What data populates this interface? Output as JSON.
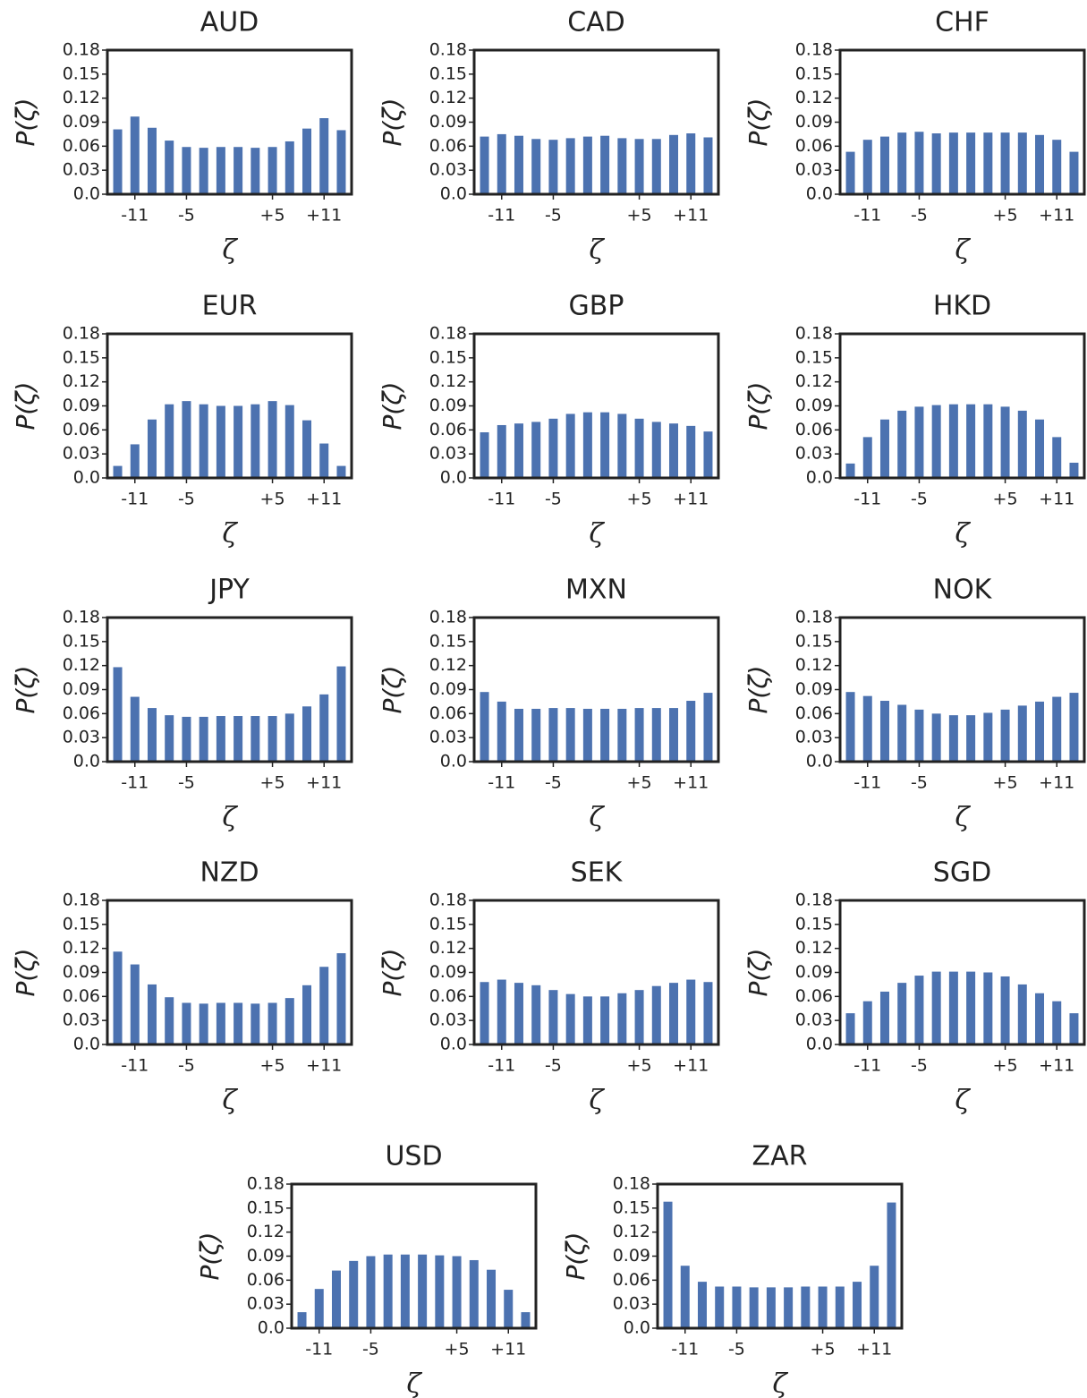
{
  "chart_data": [
    {
      "type": "bar",
      "title": "AUD",
      "xlabel": "ζ",
      "ylabel": "P(ζ)",
      "color": "#4c72b0",
      "x": [
        -13,
        -11,
        -9,
        -7,
        -5,
        -3,
        -1,
        1,
        3,
        5,
        7,
        9,
        11,
        13
      ],
      "values": [
        0.081,
        0.097,
        0.083,
        0.067,
        0.059,
        0.058,
        0.059,
        0.059,
        0.058,
        0.059,
        0.066,
        0.082,
        0.095,
        0.08
      ],
      "xlim": [
        -14.2,
        14.2
      ],
      "xticks": [
        -11,
        -5,
        {
          "value": 5,
          "label": "+5"
        },
        {
          "value": 11,
          "label": "+11"
        }
      ],
      "ylim": [
        0,
        0.18
      ],
      "yticks": [
        {
          "value": 0,
          "label": "0.0"
        },
        0.03,
        0.06,
        0.09,
        0.12,
        0.15,
        0.18
      ]
    },
    {
      "type": "bar",
      "title": "CAD",
      "xlabel": "ζ",
      "ylabel": "P(ζ)",
      "color": "#4c72b0",
      "x": [
        -13,
        -11,
        -9,
        -7,
        -5,
        -3,
        -1,
        1,
        3,
        5,
        7,
        9,
        11,
        13
      ],
      "values": [
        0.072,
        0.075,
        0.073,
        0.069,
        0.068,
        0.07,
        0.072,
        0.073,
        0.07,
        0.069,
        0.069,
        0.074,
        0.076,
        0.071
      ],
      "xlim": [
        -14.2,
        14.2
      ],
      "xticks": [
        -11,
        -5,
        {
          "value": 5,
          "label": "+5"
        },
        {
          "value": 11,
          "label": "+11"
        }
      ],
      "ylim": [
        0,
        0.18
      ],
      "yticks": [
        {
          "value": 0,
          "label": "0.0"
        },
        0.03,
        0.06,
        0.09,
        0.12,
        0.15,
        0.18
      ]
    },
    {
      "type": "bar",
      "title": "CHF",
      "xlabel": "ζ",
      "ylabel": "P(ζ)",
      "color": "#4c72b0",
      "x": [
        -13,
        -11,
        -9,
        -7,
        -5,
        -3,
        -1,
        1,
        3,
        5,
        7,
        9,
        11,
        13
      ],
      "values": [
        0.053,
        0.068,
        0.072,
        0.077,
        0.078,
        0.076,
        0.077,
        0.077,
        0.077,
        0.077,
        0.077,
        0.074,
        0.068,
        0.053
      ],
      "xlim": [
        -14.2,
        14.2
      ],
      "xticks": [
        -11,
        -5,
        {
          "value": 5,
          "label": "+5"
        },
        {
          "value": 11,
          "label": "+11"
        }
      ],
      "ylim": [
        0,
        0.18
      ],
      "yticks": [
        {
          "value": 0,
          "label": "0.0"
        },
        0.03,
        0.06,
        0.09,
        0.12,
        0.15,
        0.18
      ]
    },
    {
      "type": "bar",
      "title": "EUR",
      "xlabel": "ζ",
      "ylabel": "P(ζ)",
      "color": "#4c72b0",
      "x": [
        -13,
        -11,
        -9,
        -7,
        -5,
        -3,
        -1,
        1,
        3,
        5,
        7,
        9,
        11,
        13
      ],
      "values": [
        0.015,
        0.042,
        0.073,
        0.092,
        0.096,
        0.092,
        0.09,
        0.09,
        0.092,
        0.096,
        0.091,
        0.072,
        0.043,
        0.015
      ],
      "xlim": [
        -14.2,
        14.2
      ],
      "xticks": [
        -11,
        -5,
        {
          "value": 5,
          "label": "+5"
        },
        {
          "value": 11,
          "label": "+11"
        }
      ],
      "ylim": [
        0,
        0.18
      ],
      "yticks": [
        {
          "value": 0,
          "label": "0.0"
        },
        0.03,
        0.06,
        0.09,
        0.12,
        0.15,
        0.18
      ]
    },
    {
      "type": "bar",
      "title": "GBP",
      "xlabel": "ζ",
      "ylabel": "P(ζ)",
      "color": "#4c72b0",
      "x": [
        -13,
        -11,
        -9,
        -7,
        -5,
        -3,
        -1,
        1,
        3,
        5,
        7,
        9,
        11,
        13
      ],
      "values": [
        0.057,
        0.066,
        0.068,
        0.07,
        0.074,
        0.08,
        0.082,
        0.082,
        0.08,
        0.074,
        0.07,
        0.068,
        0.065,
        0.058
      ],
      "xlim": [
        -14.2,
        14.2
      ],
      "xticks": [
        -11,
        -5,
        {
          "value": 5,
          "label": "+5"
        },
        {
          "value": 11,
          "label": "+11"
        }
      ],
      "ylim": [
        0,
        0.18
      ],
      "yticks": [
        {
          "value": 0,
          "label": "0.0"
        },
        0.03,
        0.06,
        0.09,
        0.12,
        0.15,
        0.18
      ]
    },
    {
      "type": "bar",
      "title": "HKD",
      "xlabel": "ζ",
      "ylabel": "P(ζ)",
      "color": "#4c72b0",
      "x": [
        -13,
        -11,
        -9,
        -7,
        -5,
        -3,
        -1,
        1,
        3,
        5,
        7,
        9,
        11,
        13
      ],
      "values": [
        0.018,
        0.051,
        0.073,
        0.084,
        0.089,
        0.091,
        0.092,
        0.092,
        0.092,
        0.089,
        0.084,
        0.073,
        0.051,
        0.019
      ],
      "xlim": [
        -14.2,
        14.2
      ],
      "xticks": [
        -11,
        -5,
        {
          "value": 5,
          "label": "+5"
        },
        {
          "value": 11,
          "label": "+11"
        }
      ],
      "ylim": [
        0,
        0.18
      ],
      "yticks": [
        {
          "value": 0,
          "label": "0.0"
        },
        0.03,
        0.06,
        0.09,
        0.12,
        0.15,
        0.18
      ]
    },
    {
      "type": "bar",
      "title": "JPY",
      "xlabel": "ζ",
      "ylabel": "P(ζ)",
      "color": "#4c72b0",
      "x": [
        -13,
        -11,
        -9,
        -7,
        -5,
        -3,
        -1,
        1,
        3,
        5,
        7,
        9,
        11,
        13
      ],
      "values": [
        0.118,
        0.081,
        0.067,
        0.058,
        0.056,
        0.056,
        0.057,
        0.057,
        0.057,
        0.057,
        0.06,
        0.069,
        0.084,
        0.119
      ],
      "xlim": [
        -14.2,
        14.2
      ],
      "xticks": [
        -11,
        -5,
        {
          "value": 5,
          "label": "+5"
        },
        {
          "value": 11,
          "label": "+11"
        }
      ],
      "ylim": [
        0,
        0.18
      ],
      "yticks": [
        {
          "value": 0,
          "label": "0.0"
        },
        0.03,
        0.06,
        0.09,
        0.12,
        0.15,
        0.18
      ]
    },
    {
      "type": "bar",
      "title": "MXN",
      "xlabel": "ζ",
      "ylabel": "P(ζ)",
      "color": "#4c72b0",
      "x": [
        -13,
        -11,
        -9,
        -7,
        -5,
        -3,
        -1,
        1,
        3,
        5,
        7,
        9,
        11,
        13
      ],
      "values": [
        0.087,
        0.075,
        0.066,
        0.066,
        0.067,
        0.067,
        0.066,
        0.066,
        0.066,
        0.067,
        0.067,
        0.067,
        0.076,
        0.086
      ],
      "xlim": [
        -14.2,
        14.2
      ],
      "xticks": [
        -11,
        -5,
        {
          "value": 5,
          "label": "+5"
        },
        {
          "value": 11,
          "label": "+11"
        }
      ],
      "ylim": [
        0,
        0.18
      ],
      "yticks": [
        {
          "value": 0,
          "label": "0.0"
        },
        0.03,
        0.06,
        0.09,
        0.12,
        0.15,
        0.18
      ]
    },
    {
      "type": "bar",
      "title": "NOK",
      "xlabel": "ζ",
      "ylabel": "P(ζ)",
      "color": "#4c72b0",
      "x": [
        -13,
        -11,
        -9,
        -7,
        -5,
        -3,
        -1,
        1,
        3,
        5,
        7,
        9,
        11,
        13
      ],
      "values": [
        0.087,
        0.082,
        0.076,
        0.071,
        0.065,
        0.06,
        0.058,
        0.058,
        0.061,
        0.065,
        0.07,
        0.075,
        0.081,
        0.086
      ],
      "xlim": [
        -14.2,
        14.2
      ],
      "xticks": [
        -11,
        -5,
        {
          "value": 5,
          "label": "+5"
        },
        {
          "value": 11,
          "label": "+11"
        }
      ],
      "ylim": [
        0,
        0.18
      ],
      "yticks": [
        {
          "value": 0,
          "label": "0.0"
        },
        0.03,
        0.06,
        0.09,
        0.12,
        0.15,
        0.18
      ]
    },
    {
      "type": "bar",
      "title": "NZD",
      "xlabel": "ζ",
      "ylabel": "P(ζ)",
      "color": "#4c72b0",
      "x": [
        -13,
        -11,
        -9,
        -7,
        -5,
        -3,
        -1,
        1,
        3,
        5,
        7,
        9,
        11,
        13
      ],
      "values": [
        0.116,
        0.1,
        0.075,
        0.059,
        0.052,
        0.051,
        0.052,
        0.052,
        0.051,
        0.052,
        0.058,
        0.074,
        0.097,
        0.114
      ],
      "xlim": [
        -14.2,
        14.2
      ],
      "xticks": [
        -11,
        -5,
        {
          "value": 5,
          "label": "+5"
        },
        {
          "value": 11,
          "label": "+11"
        }
      ],
      "ylim": [
        0,
        0.18
      ],
      "yticks": [
        {
          "value": 0,
          "label": "0.0"
        },
        0.03,
        0.06,
        0.09,
        0.12,
        0.15,
        0.18
      ]
    },
    {
      "type": "bar",
      "title": "SEK",
      "xlabel": "ζ",
      "ylabel": "P(ζ)",
      "color": "#4c72b0",
      "x": [
        -13,
        -11,
        -9,
        -7,
        -5,
        -3,
        -1,
        1,
        3,
        5,
        7,
        9,
        11,
        13
      ],
      "values": [
        0.078,
        0.081,
        0.077,
        0.074,
        0.068,
        0.063,
        0.06,
        0.06,
        0.064,
        0.068,
        0.073,
        0.077,
        0.081,
        0.078
      ],
      "xlim": [
        -14.2,
        14.2
      ],
      "xticks": [
        -11,
        -5,
        {
          "value": 5,
          "label": "+5"
        },
        {
          "value": 11,
          "label": "+11"
        }
      ],
      "ylim": [
        0,
        0.18
      ],
      "yticks": [
        {
          "value": 0,
          "label": "0.0"
        },
        0.03,
        0.06,
        0.09,
        0.12,
        0.15,
        0.18
      ]
    },
    {
      "type": "bar",
      "title": "SGD",
      "xlabel": "ζ",
      "ylabel": "P(ζ)",
      "color": "#4c72b0",
      "x": [
        -13,
        -11,
        -9,
        -7,
        -5,
        -3,
        -1,
        1,
        3,
        5,
        7,
        9,
        11,
        13
      ],
      "values": [
        0.039,
        0.054,
        0.066,
        0.077,
        0.086,
        0.091,
        0.091,
        0.091,
        0.09,
        0.085,
        0.075,
        0.064,
        0.054,
        0.039
      ],
      "xlim": [
        -14.2,
        14.2
      ],
      "xticks": [
        -11,
        -5,
        {
          "value": 5,
          "label": "+5"
        },
        {
          "value": 11,
          "label": "+11"
        }
      ],
      "ylim": [
        0,
        0.18
      ],
      "yticks": [
        {
          "value": 0,
          "label": "0.0"
        },
        0.03,
        0.06,
        0.09,
        0.12,
        0.15,
        0.18
      ]
    },
    {
      "type": "bar",
      "title": "USD",
      "xlabel": "ζ",
      "ylabel": "P(ζ)",
      "color": "#4c72b0",
      "x": [
        -13,
        -11,
        -9,
        -7,
        -5,
        -3,
        -1,
        1,
        3,
        5,
        7,
        9,
        11,
        13
      ],
      "values": [
        0.02,
        0.049,
        0.072,
        0.084,
        0.09,
        0.092,
        0.092,
        0.092,
        0.091,
        0.09,
        0.085,
        0.073,
        0.048,
        0.02
      ],
      "xlim": [
        -14.2,
        14.2
      ],
      "xticks": [
        -11,
        -5,
        {
          "value": 5,
          "label": "+5"
        },
        {
          "value": 11,
          "label": "+11"
        }
      ],
      "ylim": [
        0,
        0.18
      ],
      "yticks": [
        {
          "value": 0,
          "label": "0.0"
        },
        0.03,
        0.06,
        0.09,
        0.12,
        0.15,
        0.18
      ]
    },
    {
      "type": "bar",
      "title": "ZAR",
      "xlabel": "ζ",
      "ylabel": "P(ζ)",
      "color": "#4c72b0",
      "x": [
        -13,
        -11,
        -9,
        -7,
        -5,
        -3,
        -1,
        1,
        3,
        5,
        7,
        9,
        11,
        13
      ],
      "values": [
        0.158,
        0.078,
        0.058,
        0.052,
        0.052,
        0.051,
        0.051,
        0.051,
        0.052,
        0.052,
        0.052,
        0.058,
        0.078,
        0.157
      ],
      "xlim": [
        -14.2,
        14.2
      ],
      "xticks": [
        -11,
        -5,
        {
          "value": 5,
          "label": "+5"
        },
        {
          "value": 11,
          "label": "+11"
        }
      ],
      "ylim": [
        0,
        0.18
      ],
      "yticks": [
        {
          "value": 0,
          "label": "0.0"
        },
        0.03,
        0.06,
        0.09,
        0.12,
        0.15,
        0.18
      ]
    }
  ]
}
